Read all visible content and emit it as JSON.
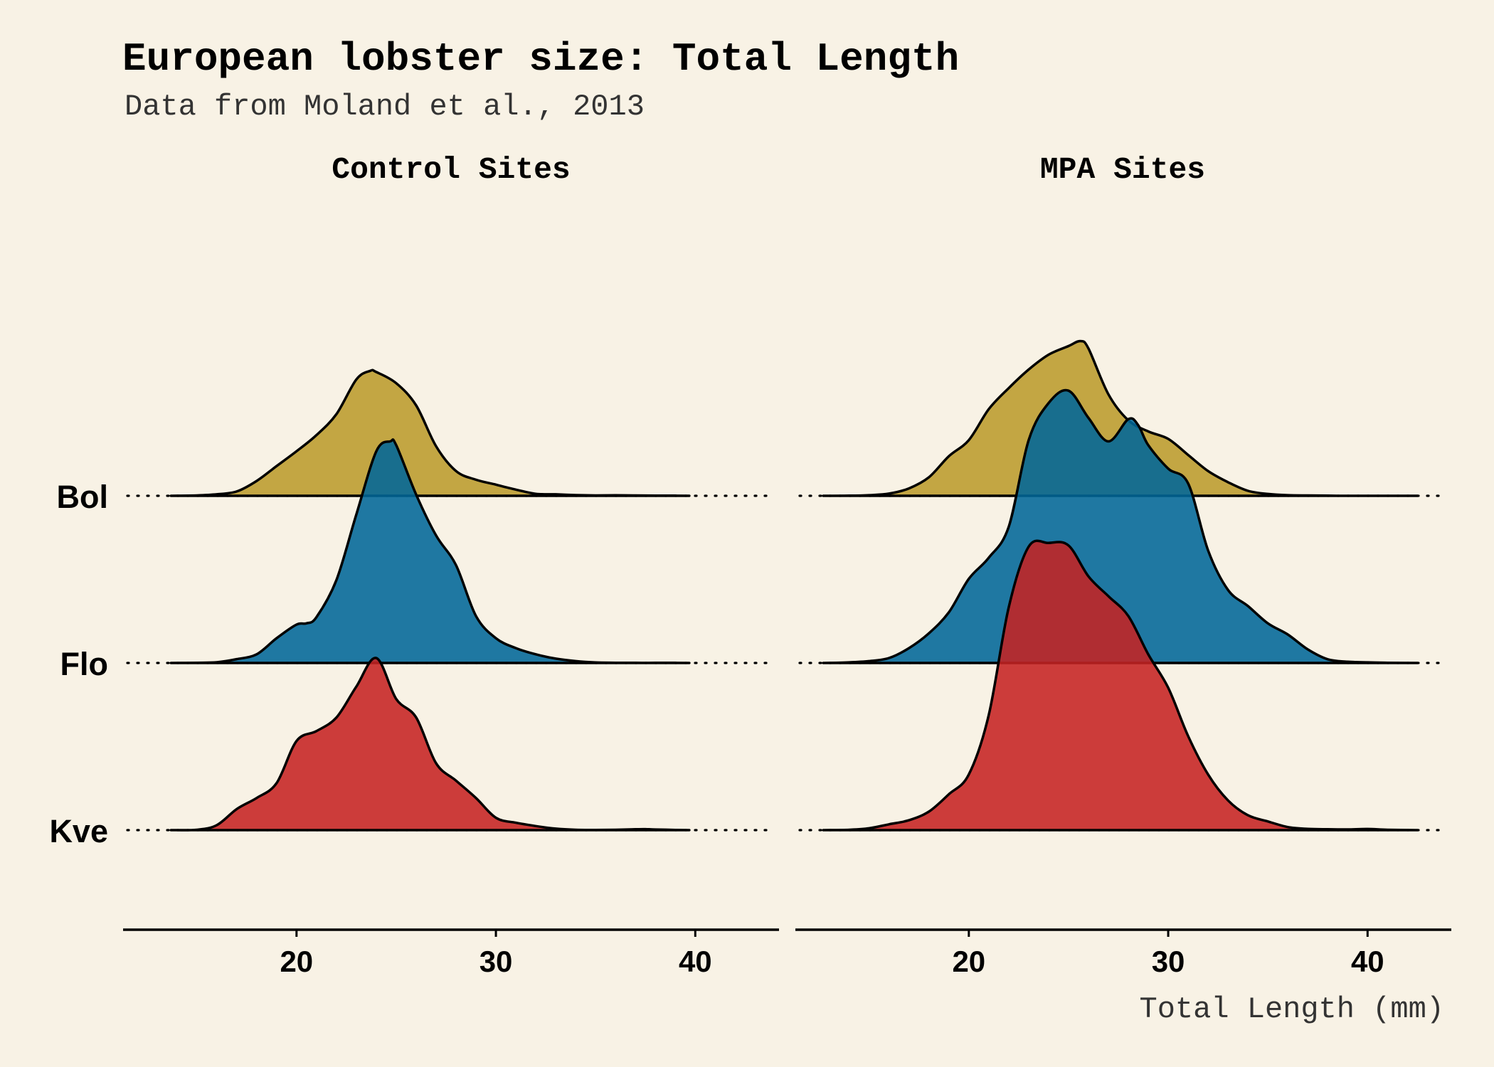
{
  "chart_data": {
    "type": "ridgeline",
    "title": "European lobster size: Total Length",
    "subtitle": "Data from Moland et al., 2013",
    "xlabel": "Total Length (mm)",
    "xlim": [
      11.3,
      44.2
    ],
    "x_ticks": [
      20,
      30,
      40
    ],
    "categories": [
      "Bol",
      "Flo",
      "Kve"
    ],
    "colors": {
      "Bol": "#bb9b2c",
      "Flo": "#006699",
      "Kve": "#c52222",
      "background": "#f8f2e5"
    },
    "fill_opacity": 0.88,
    "facets": [
      {
        "name": "Control Sites",
        "series": [
          {
            "name": "Bol",
            "x": [
              13.7,
              15,
              16,
              17,
              18,
              19,
              20,
              21,
              22,
              23,
              23.7,
              24,
              25,
              26,
              27,
              28,
              29,
              30,
              31,
              32,
              33,
              34,
              35,
              36,
              37,
              38,
              39,
              39.7
            ],
            "y": [
              0.0,
              0.3,
              1.2,
              3.5,
              12,
              24,
              36,
              49,
              66,
              94,
              101,
              100,
              91,
              73,
              40,
              20,
              13,
              9,
              5,
              1.6,
              1.2,
              0.6,
              0.3,
              0.4,
              0.3,
              0.2,
              0.1,
              0.0
            ]
          },
          {
            "name": "Flo",
            "x": [
              13.7,
              15,
              16,
              17,
              18,
              19,
              20,
              20.5,
              21,
              22,
              23,
              24,
              24.7,
              25,
              26,
              27,
              28,
              29,
              30,
              31,
              32,
              33,
              34,
              35,
              36,
              37,
              38,
              39,
              39.7
            ],
            "y": [
              0.0,
              0.2,
              0.6,
              3.1,
              7,
              20,
              31,
              32,
              37,
              67,
              120,
              171,
              179,
              176,
              136,
              103,
              79,
              38,
              20,
              12,
              7,
              3.5,
              1.5,
              0.4,
              0.2,
              0.1,
              0.1,
              0.1,
              0.0
            ]
          },
          {
            "name": "Kve",
            "x": [
              13.7,
              15,
              16,
              17,
              18,
              19,
              20,
              21,
              22,
              23,
              24,
              25,
              26,
              27,
              28,
              29,
              30,
              31,
              32,
              33,
              34,
              35,
              36,
              37,
              37.5,
              38,
              39,
              39.7
            ],
            "y": [
              0.0,
              0.3,
              4,
              17,
              26,
              38,
              72,
              80,
              91,
              116,
              139,
              106,
              91,
              54,
              40,
              26,
              10,
              6,
              3.3,
              1.2,
              0.3,
              0.2,
              0.3,
              0.7,
              0.8,
              0.5,
              0.2,
              0.0
            ]
          }
        ]
      },
      {
        "name": "MPA Sites",
        "series": [
          {
            "name": "Bol",
            "x": [
              12.7,
              14,
              15,
              16,
              17,
              18,
              19,
              20,
              21,
              22,
              23,
              24,
              25,
              25.6,
              26,
              27,
              28,
              29,
              30,
              31,
              32,
              33,
              34,
              35,
              36,
              37,
              38,
              39,
              40,
              41,
              42.5
            ],
            "y": [
              0.0,
              0.1,
              0.5,
              1.8,
              6,
              15,
              32,
              45,
              70,
              87,
              102,
              114,
              121,
              125,
              119,
              82,
              61,
              52,
              46,
              33,
              20,
              11,
              4,
              1.5,
              0.5,
              0.3,
              0.1,
              0.0,
              0.0,
              0.0,
              0.0
            ]
          },
          {
            "name": "Flo",
            "x": [
              12.7,
              14,
              15,
              16,
              17,
              18,
              19,
              20,
              21,
              22,
              23,
              24,
              25,
              26,
              27,
              28,
              28.5,
              29,
              30,
              31,
              32,
              33,
              34,
              35,
              36,
              37,
              38,
              39,
              40,
              41,
              42.5
            ],
            "y": [
              0.0,
              0.5,
              1.5,
              4,
              12,
              24,
              41,
              68,
              85,
              110,
              180,
              210,
              220,
              198,
              179,
              197,
              192,
              176,
              157,
              145,
              91,
              59,
              46,
              32,
              23,
              11,
              3,
              1,
              0.5,
              0.2,
              0.0
            ]
          },
          {
            "name": "Kve",
            "x": [
              12.7,
              14,
              15,
              16,
              17,
              18,
              19,
              20,
              21,
              22,
              23,
              24,
              25,
              26,
              27,
              28,
              29,
              30,
              31,
              32,
              33,
              34,
              35,
              36,
              37,
              38,
              39,
              40,
              41,
              42.5
            ],
            "y": [
              0.0,
              0.3,
              1.5,
              4.7,
              8,
              15,
              29,
              45,
              93,
              180,
              229,
              232,
              230,
              205,
              189,
              173,
              142,
              115,
              76,
              45,
              24,
              12,
              7,
              2.5,
              1,
              0.7,
              0.6,
              0.9,
              0.3,
              0.0
            ]
          }
        ]
      }
    ]
  }
}
